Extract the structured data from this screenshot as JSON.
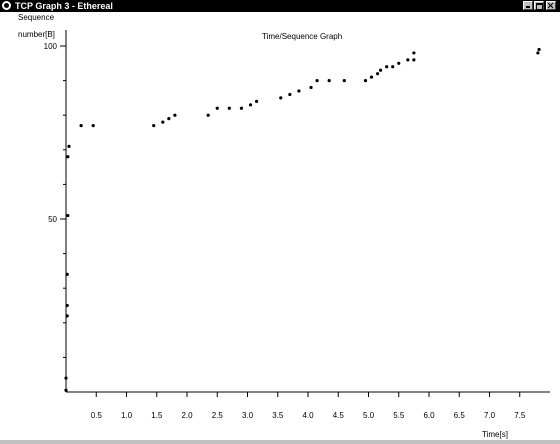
{
  "window": {
    "title": "TCP Graph 3 - Ethereal"
  },
  "icons": {
    "app": "ethereal-app-icon",
    "minimize": "minimize-icon",
    "maximize": "maximize-icon",
    "close": "close-icon"
  },
  "chart_data": {
    "type": "scatter",
    "title": "Time/Sequence Graph",
    "ylabel_line1": "Sequence",
    "ylabel_line2": "number[B]",
    "xlabel": "Time[s]",
    "x_ticks": [
      "0.5",
      "1.0",
      "1.5",
      "2.0",
      "2.5",
      "3.0",
      "3.5",
      "4.0",
      "4.5",
      "5.0",
      "5.5",
      "6.0",
      "6.5",
      "7.0",
      "7.5"
    ],
    "y_ticks": [
      "50",
      "100"
    ],
    "xlim": [
      0.0,
      8.0
    ],
    "ylim": [
      0,
      100
    ],
    "grid": false,
    "points": [
      {
        "x": 0.0,
        "y": 0.5
      },
      {
        "x": 0.0,
        "y": 4
      },
      {
        "x": 0.02,
        "y": 22
      },
      {
        "x": 0.02,
        "y": 25
      },
      {
        "x": 0.02,
        "y": 34
      },
      {
        "x": 0.03,
        "y": 51
      },
      {
        "x": 0.03,
        "y": 68
      },
      {
        "x": 0.05,
        "y": 71
      },
      {
        "x": 0.25,
        "y": 77
      },
      {
        "x": 0.45,
        "y": 77
      },
      {
        "x": 1.45,
        "y": 77
      },
      {
        "x": 1.6,
        "y": 78
      },
      {
        "x": 1.7,
        "y": 79
      },
      {
        "x": 1.8,
        "y": 80
      },
      {
        "x": 2.35,
        "y": 80
      },
      {
        "x": 2.5,
        "y": 82
      },
      {
        "x": 2.7,
        "y": 82
      },
      {
        "x": 2.9,
        "y": 82
      },
      {
        "x": 3.05,
        "y": 83
      },
      {
        "x": 3.15,
        "y": 84
      },
      {
        "x": 3.55,
        "y": 85
      },
      {
        "x": 3.7,
        "y": 86
      },
      {
        "x": 3.85,
        "y": 87
      },
      {
        "x": 4.05,
        "y": 88
      },
      {
        "x": 4.15,
        "y": 90
      },
      {
        "x": 4.35,
        "y": 90
      },
      {
        "x": 4.6,
        "y": 90
      },
      {
        "x": 4.95,
        "y": 90
      },
      {
        "x": 5.05,
        "y": 91
      },
      {
        "x": 5.15,
        "y": 92
      },
      {
        "x": 5.2,
        "y": 93
      },
      {
        "x": 5.3,
        "y": 94
      },
      {
        "x": 5.4,
        "y": 94
      },
      {
        "x": 5.5,
        "y": 95
      },
      {
        "x": 5.65,
        "y": 96
      },
      {
        "x": 5.75,
        "y": 96
      },
      {
        "x": 5.75,
        "y": 98
      },
      {
        "x": 7.8,
        "y": 98
      },
      {
        "x": 7.82,
        "y": 99
      }
    ]
  }
}
